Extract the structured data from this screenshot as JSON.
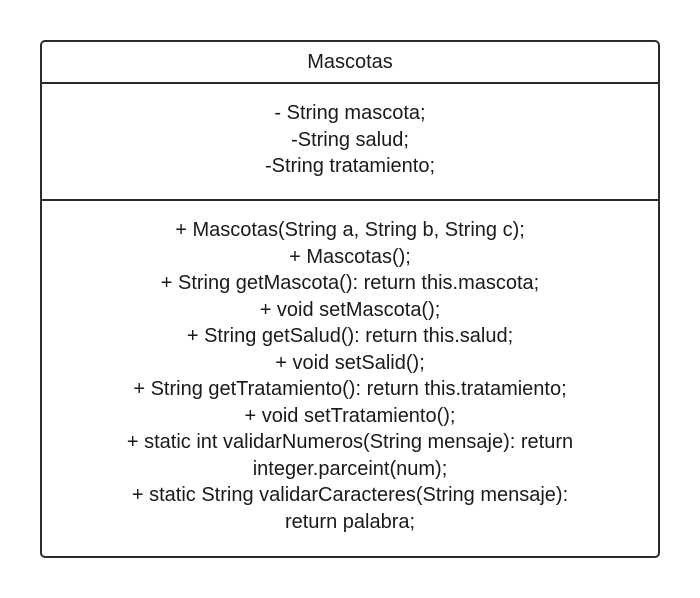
{
  "class_name": "Mascotas",
  "attributes": [
    "- String mascota;",
    "-String salud;",
    "-String tratamiento;"
  ],
  "methods": [
    "+ Mascotas(String a, String b, String c);",
    "+ Mascotas();",
    "+ String getMascota(): return this.mascota;",
    "+ void setMascota();",
    "+ String getSalud(): return this.salud;",
    "+ void setSalid();",
    "+ String getTratamiento(): return this.tratamiento;",
    "+ void setTratamiento();",
    "+ static int validarNumeros(String mensaje): return",
    "integer.parceint(num);",
    "+ static String validarCaracteres(String mensaje):",
    "return palabra;"
  ]
}
